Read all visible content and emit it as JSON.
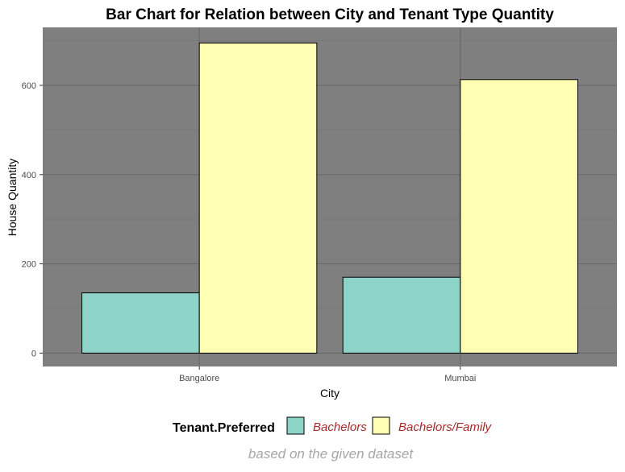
{
  "chart_data": {
    "type": "bar",
    "title": "Bar Chart for Relation between City and Tenant Type Quantity",
    "xlabel": "City",
    "ylabel": "House Quantity",
    "categories": [
      "Bangalore",
      "Mumbai"
    ],
    "series": [
      {
        "name": "Bachelors",
        "values": [
          135,
          170
        ],
        "color": "#8DD3C7"
      },
      {
        "name": "Bachelors/Family",
        "values": [
          695,
          613
        ],
        "color": "#FFFFB3"
      }
    ],
    "ylim": [
      -30,
      730
    ],
    "yticks": [
      0,
      200,
      400,
      600
    ],
    "grid": true,
    "legend_title": "Tenant.Preferred",
    "legend_position": "bottom",
    "caption": "based on the given dataset",
    "panel_background": "#7F7F7F",
    "grid_major_color": "#6B6B6B",
    "grid_minor_color": "#777777"
  }
}
